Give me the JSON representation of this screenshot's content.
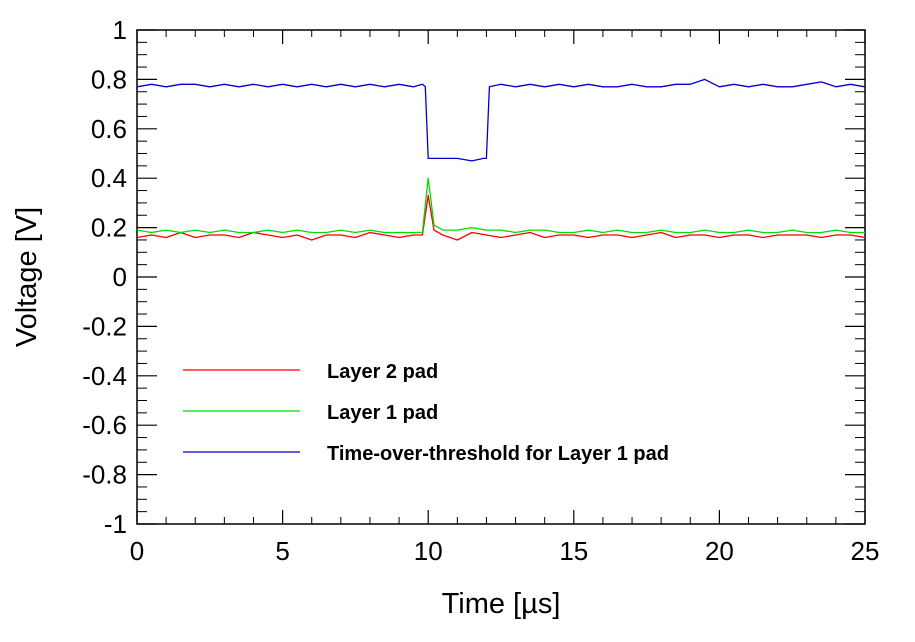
{
  "chart_data": {
    "type": "line",
    "title": "",
    "xlabel": "Time [µs]",
    "ylabel": "Voltage [V]",
    "xlim": [
      0,
      25
    ],
    "ylim": [
      -1,
      1
    ],
    "xticks": [
      0,
      5,
      10,
      15,
      20,
      25
    ],
    "yticks": [
      -1,
      -0.8,
      -0.6,
      -0.4,
      -0.2,
      0,
      0.2,
      0.4,
      0.6,
      0.8,
      1
    ],
    "xtick_labels": [
      "0",
      "5",
      "10",
      "15",
      "20",
      "25"
    ],
    "ytick_labels": [
      "-1",
      "-0.8",
      "-0.6",
      "-0.4",
      "-0.2",
      "0",
      "0.2",
      "0.4",
      "0.6",
      "0.8",
      "1"
    ],
    "grid": false,
    "legend_position": "bottom-left",
    "series": [
      {
        "name": "Layer 2 pad",
        "color": "#ff0000",
        "x": [
          0,
          0.5,
          1,
          1.5,
          2,
          2.5,
          3,
          3.5,
          4,
          4.5,
          5,
          5.5,
          6,
          6.5,
          7,
          7.5,
          8,
          8.5,
          9,
          9.5,
          9.8,
          10,
          10.2,
          10.5,
          11,
          11.5,
          12,
          12.5,
          13,
          13.5,
          14,
          14.5,
          15,
          15.5,
          16,
          16.5,
          17,
          17.5,
          18,
          18.5,
          19,
          19.5,
          20,
          20.5,
          21,
          21.5,
          22,
          22.5,
          23,
          23.5,
          24,
          24.5,
          25
        ],
        "y": [
          0.16,
          0.17,
          0.16,
          0.18,
          0.16,
          0.17,
          0.17,
          0.16,
          0.18,
          0.17,
          0.16,
          0.17,
          0.15,
          0.17,
          0.17,
          0.16,
          0.18,
          0.17,
          0.16,
          0.17,
          0.17,
          0.33,
          0.19,
          0.17,
          0.15,
          0.18,
          0.17,
          0.16,
          0.17,
          0.18,
          0.16,
          0.17,
          0.17,
          0.16,
          0.17,
          0.17,
          0.16,
          0.17,
          0.18,
          0.16,
          0.17,
          0.17,
          0.16,
          0.17,
          0.17,
          0.16,
          0.17,
          0.17,
          0.17,
          0.16,
          0.17,
          0.17,
          0.16
        ]
      },
      {
        "name": "Layer 1 pad",
        "color": "#00dd00",
        "x": [
          0,
          0.5,
          1,
          1.5,
          2,
          2.5,
          3,
          3.5,
          4,
          4.5,
          5,
          5.5,
          6,
          6.5,
          7,
          7.5,
          8,
          8.5,
          9,
          9.5,
          9.8,
          10,
          10.2,
          10.5,
          11,
          11.5,
          12,
          12.5,
          13,
          13.5,
          14,
          14.5,
          15,
          15.5,
          16,
          16.5,
          17,
          17.5,
          18,
          18.5,
          19,
          19.5,
          20,
          20.5,
          21,
          21.5,
          22,
          22.5,
          23,
          23.5,
          24,
          24.5,
          25
        ],
        "y": [
          0.19,
          0.18,
          0.19,
          0.18,
          0.19,
          0.18,
          0.19,
          0.18,
          0.18,
          0.19,
          0.18,
          0.19,
          0.18,
          0.18,
          0.19,
          0.18,
          0.19,
          0.18,
          0.18,
          0.18,
          0.18,
          0.4,
          0.21,
          0.19,
          0.19,
          0.2,
          0.19,
          0.19,
          0.18,
          0.19,
          0.19,
          0.18,
          0.18,
          0.19,
          0.18,
          0.19,
          0.18,
          0.18,
          0.19,
          0.18,
          0.18,
          0.19,
          0.18,
          0.18,
          0.19,
          0.18,
          0.18,
          0.19,
          0.18,
          0.18,
          0.19,
          0.18,
          0.18
        ]
      },
      {
        "name": "Time-over-threshold for Layer 1 pad",
        "color": "#0000cc",
        "x": [
          0,
          0.5,
          1,
          1.5,
          2,
          2.5,
          3,
          3.5,
          4,
          4.5,
          5,
          5.5,
          6,
          6.5,
          7,
          7.5,
          8,
          8.5,
          9,
          9.5,
          9.8,
          9.9,
          10,
          10.5,
          11,
          11.5,
          11.9,
          12,
          12.1,
          12.5,
          13,
          13.5,
          14,
          14.5,
          15,
          15.5,
          16,
          16.5,
          17,
          17.5,
          18,
          18.5,
          19,
          19.5,
          20,
          20.5,
          21,
          21.5,
          22,
          22.5,
          23,
          23.5,
          24,
          24.5,
          25
        ],
        "y": [
          0.77,
          0.78,
          0.77,
          0.78,
          0.78,
          0.77,
          0.78,
          0.77,
          0.78,
          0.77,
          0.78,
          0.77,
          0.78,
          0.77,
          0.78,
          0.77,
          0.78,
          0.77,
          0.78,
          0.77,
          0.78,
          0.77,
          0.48,
          0.48,
          0.48,
          0.47,
          0.48,
          0.48,
          0.77,
          0.78,
          0.77,
          0.78,
          0.77,
          0.78,
          0.77,
          0.78,
          0.77,
          0.77,
          0.78,
          0.77,
          0.77,
          0.78,
          0.78,
          0.8,
          0.77,
          0.78,
          0.77,
          0.78,
          0.77,
          0.77,
          0.78,
          0.79,
          0.77,
          0.78,
          0.77
        ]
      }
    ]
  }
}
